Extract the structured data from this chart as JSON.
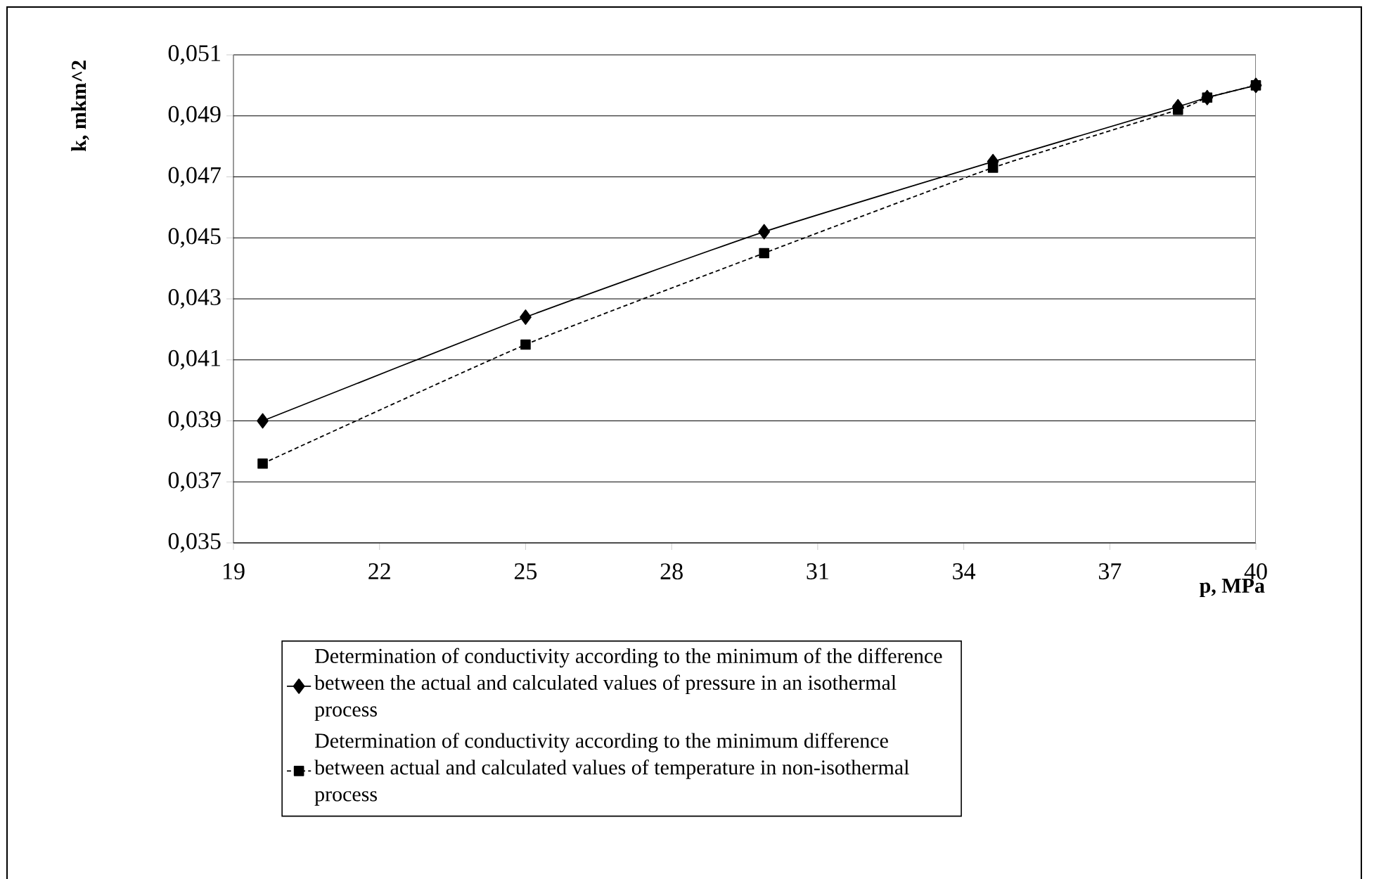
{
  "chart_data": {
    "type": "line",
    "xlabel": "p, MPa",
    "ylabel": "k, mkm^2",
    "x": [
      19.6,
      25,
      29.9,
      34.6,
      38.4,
      39,
      40
    ],
    "series": [
      {
        "name": "Determination of conductivity according to the minimum of the difference between the actual and calculated values of pressure in an isothermal process",
        "color": "#000000",
        "marker": "diamond",
        "line_style": "solid",
        "values": [
          0.039,
          0.0424,
          0.0452,
          0.0475,
          0.0493,
          0.0496,
          0.05
        ]
      },
      {
        "name": "Determination of conductivity according to the minimum difference between actual and calculated values of temperature in non-isothermal process",
        "color": "#000000",
        "marker": "square",
        "line_style": "dashed",
        "values": [
          0.0376,
          0.0415,
          0.0445,
          0.0473,
          0.0492,
          0.0496,
          0.05
        ]
      }
    ],
    "xlim": [
      19,
      40
    ],
    "xticks": [
      19,
      22,
      25,
      28,
      31,
      34,
      37,
      40
    ],
    "ylim": [
      0.035,
      0.051
    ],
    "yticks": [
      {
        "value": 0.035,
        "label": "0,035"
      },
      {
        "value": 0.037,
        "label": "0,037"
      },
      {
        "value": 0.039,
        "label": "0,039"
      },
      {
        "value": 0.041,
        "label": "0,041"
      },
      {
        "value": 0.043,
        "label": "0,043"
      },
      {
        "value": 0.045,
        "label": "0,045"
      },
      {
        "value": 0.047,
        "label": "0,047"
      },
      {
        "value": 0.049,
        "label": "0,049"
      },
      {
        "value": 0.051,
        "label": "0,051"
      }
    ],
    "grid": "y",
    "legend": "bottom"
  }
}
